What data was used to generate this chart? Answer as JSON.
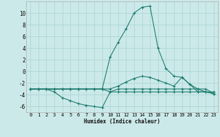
{
  "background_color": "#cce9e9",
  "grid_color": "#b0d8d8",
  "line_color": "#1a7a6e",
  "marker_color": "#1a7a6e",
  "xlabel": "Humidex (Indice chaleur)",
  "xlim": [
    -0.5,
    23.5
  ],
  "ylim": [
    -7,
    12
  ],
  "yticks": [
    -6,
    -4,
    -2,
    0,
    2,
    4,
    6,
    8,
    10
  ],
  "xticks": [
    0,
    1,
    2,
    3,
    4,
    5,
    6,
    7,
    8,
    9,
    10,
    11,
    12,
    13,
    14,
    15,
    16,
    17,
    18,
    19,
    20,
    21,
    22,
    23
  ],
  "series": [
    {
      "x": [
        0,
        1,
        2,
        3,
        4,
        5,
        6,
        7,
        8,
        9,
        10,
        11,
        12,
        13,
        14,
        15,
        16,
        17,
        18,
        19,
        20,
        21,
        22,
        23
      ],
      "y": [
        -3,
        -3,
        -3,
        -3.5,
        -4.5,
        -5,
        -5.5,
        -5.8,
        -6,
        -6.2,
        -3.5,
        -3.5,
        -3.5,
        -3.5,
        -3.5,
        -3.5,
        -3.5,
        -3.5,
        -3.5,
        -3.5,
        -3.5,
        -3.5,
        -3.5,
        -3.5
      ]
    },
    {
      "x": [
        0,
        1,
        2,
        3,
        4,
        5,
        6,
        7,
        8,
        9,
        10,
        11,
        12,
        13,
        14,
        15,
        16,
        17,
        18,
        19,
        20,
        21,
        22,
        23
      ],
      "y": [
        -3,
        -3,
        -3,
        -3,
        -3,
        -3,
        -3,
        -3,
        -3,
        -3,
        -3.5,
        -3,
        -3,
        -3,
        -3,
        -3,
        -3,
        -3,
        -3,
        -3,
        -3,
        -3,
        -3,
        -3.8
      ]
    },
    {
      "x": [
        0,
        1,
        2,
        3,
        4,
        5,
        6,
        7,
        8,
        9,
        10,
        11,
        12,
        13,
        14,
        15,
        16,
        17,
        18,
        19,
        20,
        21,
        22,
        23
      ],
      "y": [
        -3,
        -3,
        -3,
        -3,
        -3,
        -3,
        -3,
        -3,
        -3,
        -3,
        -3,
        -2.5,
        -1.8,
        -1.2,
        -0.8,
        -1.0,
        -1.5,
        -2.0,
        -2.5,
        -1.0,
        -2.2,
        -3.0,
        -3.5,
        -3.8
      ]
    },
    {
      "x": [
        0,
        1,
        2,
        3,
        4,
        5,
        6,
        7,
        8,
        9,
        10,
        11,
        12,
        13,
        14,
        15,
        16,
        17,
        18,
        19,
        20,
        21,
        22,
        23
      ],
      "y": [
        -3,
        -3,
        -3,
        -3,
        -3,
        -3,
        -3,
        -3,
        -3,
        -3,
        2.5,
        5.0,
        7.3,
        10.0,
        11.0,
        11.2,
        4.0,
        0.5,
        -0.8,
        -1.0,
        -2.2,
        -3.5,
        -3.5,
        -3.8
      ]
    }
  ]
}
